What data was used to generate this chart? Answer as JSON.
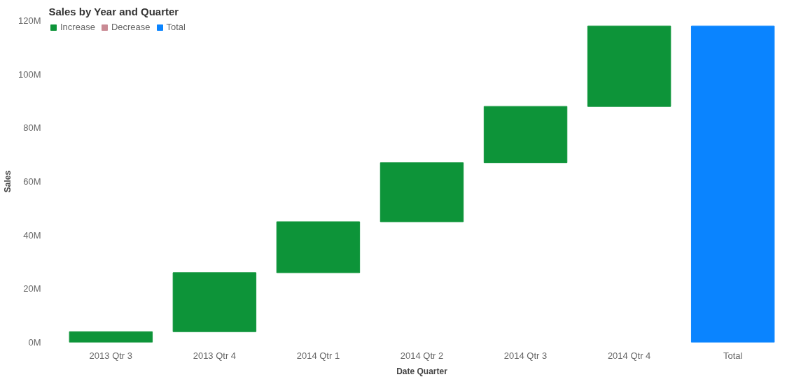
{
  "chart_data": {
    "type": "bar",
    "title": "Sales by Year and Quarter",
    "xlabel": "Date Quarter",
    "ylabel": "Sales",
    "categories": [
      "2013 Qtr 3",
      "2013 Qtr 4",
      "2014 Qtr 1",
      "2014 Qtr 2",
      "2014 Qtr 3",
      "2014 Qtr 4",
      "Total"
    ],
    "series": [
      {
        "name": "Increase",
        "color": "#0d9439",
        "values": [
          4,
          22,
          19,
          22,
          21,
          30,
          null
        ],
        "base": [
          0,
          4,
          26,
          45,
          67,
          88,
          null
        ]
      },
      {
        "name": "Decrease",
        "color": "#c98a94",
        "values": [
          null,
          null,
          null,
          null,
          null,
          null,
          null
        ]
      },
      {
        "name": "Total",
        "color": "#0a84ff",
        "values": [
          null,
          null,
          null,
          null,
          null,
          null,
          118
        ]
      }
    ],
    "ylim": [
      0,
      120
    ],
    "yticks": [
      {
        "value": 0,
        "label": "0M"
      },
      {
        "value": 20,
        "label": "20M"
      },
      {
        "value": 40,
        "label": "40M"
      },
      {
        "value": 60,
        "label": "60M"
      },
      {
        "value": 80,
        "label": "80M"
      },
      {
        "value": 100,
        "label": "100M"
      },
      {
        "value": 120,
        "label": "120M"
      }
    ],
    "legend": "top left"
  }
}
